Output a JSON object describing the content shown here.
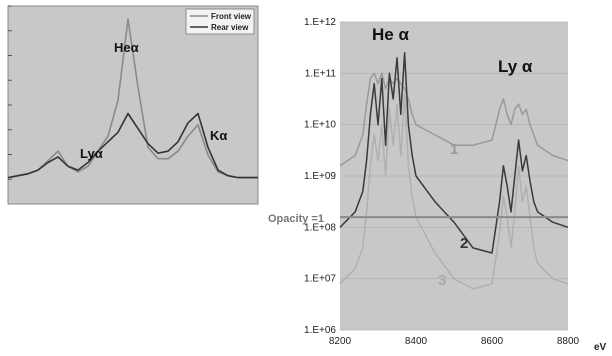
{
  "chart_data": [
    {
      "type": "line",
      "legend": {
        "placement": "top-right",
        "entries": [
          "Front view",
          "Rear view"
        ]
      },
      "annotations": [
        "Heα",
        "Lyα",
        "Kα"
      ],
      "x": [
        0,
        4,
        8,
        12,
        16,
        20,
        24,
        28,
        32,
        36,
        40,
        44,
        48,
        52,
        56,
        60,
        64,
        68,
        72,
        76,
        80,
        84,
        88,
        92,
        96,
        100
      ],
      "series": [
        {
          "name": "Front view",
          "color": "#8a8a8a",
          "values": [
            0.14,
            0.15,
            0.16,
            0.18,
            0.23,
            0.28,
            0.2,
            0.17,
            0.2,
            0.28,
            0.36,
            0.55,
            0.98,
            0.62,
            0.3,
            0.24,
            0.24,
            0.28,
            0.36,
            0.42,
            0.26,
            0.17,
            0.15,
            0.14,
            0.14,
            0.14
          ]
        },
        {
          "name": "Rear view",
          "color": "#333333",
          "values": [
            0.14,
            0.15,
            0.16,
            0.18,
            0.22,
            0.25,
            0.2,
            0.18,
            0.22,
            0.28,
            0.33,
            0.38,
            0.48,
            0.4,
            0.32,
            0.27,
            0.28,
            0.33,
            0.43,
            0.48,
            0.3,
            0.18,
            0.15,
            0.14,
            0.14,
            0.14
          ]
        }
      ],
      "ylim": [
        0,
        1.05
      ]
    },
    {
      "type": "line",
      "xlabel": "eV",
      "x_ticks": [
        "8200",
        "8400",
        "8600",
        "8800"
      ],
      "y_ticks": [
        "1.E+06",
        "1.E+07",
        "1.E+08",
        "1.E+09",
        "1.E+10",
        "1.E+11",
        "1.E+12"
      ],
      "xlim": [
        8200,
        8800
      ],
      "ylim_log10": [
        6,
        12
      ],
      "yscale": "log",
      "annotations": {
        "he_alpha": "He α",
        "ly_alpha": "Ly α",
        "opacity": "Opacity =1"
      },
      "opacity_level_log10": 8.2,
      "x": [
        8200,
        8240,
        8260,
        8270,
        8280,
        8290,
        8300,
        8310,
        8320,
        8330,
        8340,
        8350,
        8360,
        8370,
        8380,
        8390,
        8400,
        8450,
        8500,
        8550,
        8600,
        8620,
        8630,
        8640,
        8650,
        8660,
        8670,
        8680,
        8690,
        8700,
        8710,
        8720,
        8760,
        8800
      ],
      "series": [
        {
          "name": "1",
          "color": "#9a9a9a",
          "log10_values": [
            9.2,
            9.4,
            9.8,
            10.4,
            10.9,
            11.0,
            10.8,
            11.0,
            10.7,
            10.9,
            10.8,
            10.9,
            10.8,
            10.7,
            10.5,
            10.2,
            10.0,
            9.8,
            9.6,
            9.6,
            9.7,
            10.3,
            10.5,
            10.2,
            10.0,
            10.3,
            10.4,
            10.2,
            10.3,
            10.0,
            9.8,
            9.6,
            9.4,
            9.3
          ]
        },
        {
          "name": "2",
          "color": "#3a3a3a",
          "log10_values": [
            8.0,
            8.3,
            8.7,
            9.3,
            10.2,
            10.8,
            10.0,
            10.9,
            9.6,
            11.0,
            10.5,
            11.3,
            10.2,
            11.4,
            10.0,
            9.4,
            9.0,
            8.5,
            8.1,
            7.6,
            7.5,
            8.5,
            9.2,
            8.8,
            8.3,
            9.0,
            9.7,
            9.1,
            9.4,
            8.9,
            8.5,
            8.3,
            8.1,
            8.0
          ]
        },
        {
          "name": "3",
          "color": "#b0b0b0",
          "log10_values": [
            6.9,
            7.2,
            7.6,
            8.3,
            9.2,
            9.8,
            9.3,
            10.0,
            9.0,
            10.3,
            9.6,
            10.4,
            9.4,
            10.6,
            9.2,
            8.6,
            8.2,
            7.5,
            7.0,
            6.8,
            6.9,
            7.9,
            8.6,
            8.2,
            7.6,
            8.3,
            9.2,
            8.5,
            8.8,
            8.2,
            7.6,
            7.3,
            7.0,
            6.9
          ]
        }
      ],
      "curve_labels": [
        "1",
        "2",
        "3"
      ]
    }
  ]
}
